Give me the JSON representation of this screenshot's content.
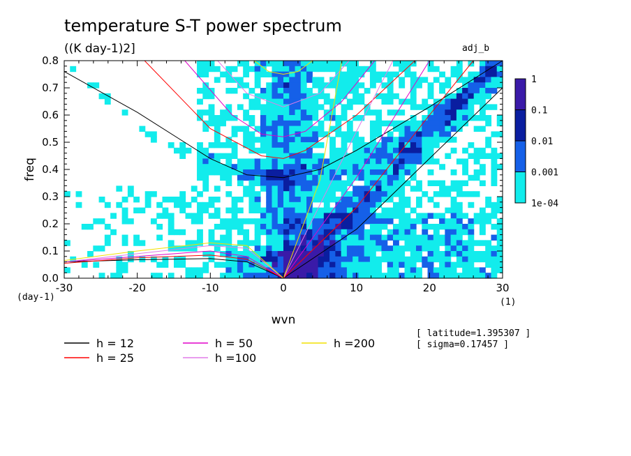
{
  "header": {
    "title": "temperature S-T power spectrum",
    "units": "((K day-1)2]",
    "run_name": "adj_b"
  },
  "info": {
    "latitude": "[ latitude=1.395307 ]",
    "sigma": "[ sigma=0.17457 ]"
  },
  "axes": {
    "xlabel": "wvn",
    "ylabel": "freq",
    "x_unit": "(1)",
    "y_unit": "(day-1)",
    "xlim": [
      -30,
      30
    ],
    "ylim": [
      0,
      0.8
    ],
    "x_ticks": [
      "-30",
      "-20",
      "-10",
      "0",
      "10",
      "20",
      "30"
    ],
    "y_ticks": [
      "0.0",
      "0.1",
      "0.2",
      "0.3",
      "0.4",
      "0.5",
      "0.6",
      "0.7",
      "0.8"
    ]
  },
  "colorbar": {
    "labels": [
      "1",
      "0.1",
      "0.01",
      "0.001",
      "1e-04"
    ],
    "colors": [
      "#3a1aa8",
      "#0a1ea0",
      "#1560e8",
      "#12ecec"
    ]
  },
  "legend": {
    "items": [
      {
        "label": "h = 12",
        "color": "#000000"
      },
      {
        "label": "h = 25",
        "color": "#ff0000"
      },
      {
        "label": "h = 50",
        "color": "#e000c8"
      },
      {
        "label": "h =100",
        "color": "#e07ce8"
      },
      {
        "label": "h =200",
        "color": "#f2e000"
      }
    ]
  },
  "chart_data": {
    "type": "heatmap",
    "title": "temperature S-T power spectrum",
    "xlabel": "wvn",
    "ylabel": "freq",
    "xlim": [
      -30,
      30
    ],
    "ylim": [
      0,
      0.8
    ],
    "grid": false,
    "levels": [
      0.0001,
      0.001,
      0.01,
      0.1,
      1
    ],
    "level_colors": [
      "#12ecec",
      "#1560e8",
      "#0a1ea0",
      "#3a1aa8"
    ],
    "curves": [
      {
        "name": "h = 12",
        "color": "#000000",
        "branch": "inertia-gravity",
        "points": [
          [
            -30,
            0.76
          ],
          [
            -20,
            0.61
          ],
          [
            -10,
            0.44
          ],
          [
            -5,
            0.38
          ],
          [
            0,
            0.37
          ],
          [
            5,
            0.4
          ],
          [
            10,
            0.47
          ],
          [
            20,
            0.63
          ],
          [
            30,
            0.8
          ]
        ]
      },
      {
        "name": "h = 12",
        "color": "#000000",
        "branch": "kelvin",
        "points": [
          [
            0,
            0
          ],
          [
            10,
            0.18
          ],
          [
            20,
            0.44
          ],
          [
            30,
            0.7
          ]
        ]
      },
      {
        "name": "h = 12",
        "color": "#000000",
        "branch": "rossby",
        "points": [
          [
            -30,
            0.06
          ],
          [
            -20,
            0.068
          ],
          [
            -10,
            0.072
          ],
          [
            -5,
            0.06
          ],
          [
            0,
            0
          ]
        ]
      },
      {
        "name": "h = 25",
        "color": "#ff0000",
        "branch": "inertia-gravity",
        "points": [
          [
            -19,
            0.8
          ],
          [
            -10,
            0.55
          ],
          [
            -3,
            0.45
          ],
          [
            0,
            0.44
          ],
          [
            3,
            0.47
          ],
          [
            10,
            0.6
          ],
          [
            18,
            0.8
          ]
        ]
      },
      {
        "name": "h = 25",
        "color": "#ff0000",
        "branch": "kelvin",
        "points": [
          [
            0,
            0
          ],
          [
            10,
            0.26
          ],
          [
            20,
            0.6
          ],
          [
            26,
            0.8
          ]
        ]
      },
      {
        "name": "h = 25",
        "color": "#ff0000",
        "branch": "rossby",
        "points": [
          [
            -30,
            0.055
          ],
          [
            -20,
            0.075
          ],
          [
            -10,
            0.085
          ],
          [
            -5,
            0.07
          ],
          [
            0,
            0
          ]
        ]
      },
      {
        "name": "h = 50",
        "color": "#e000c8",
        "branch": "inertia-gravity",
        "points": [
          [
            -13.5,
            0.8
          ],
          [
            -7,
            0.6
          ],
          [
            -3,
            0.53
          ],
          [
            0,
            0.52
          ],
          [
            3,
            0.54
          ],
          [
            8,
            0.65
          ],
          [
            12.5,
            0.8
          ]
        ]
      },
      {
        "name": "h = 50",
        "color": "#e000c8",
        "branch": "kelvin",
        "points": [
          [
            0,
            0
          ],
          [
            10,
            0.37
          ],
          [
            20,
            0.8
          ]
        ]
      },
      {
        "name": "h = 50",
        "color": "#e000c8",
        "branch": "rossby",
        "points": [
          [
            -30,
            0.06
          ],
          [
            -20,
            0.08
          ],
          [
            -10,
            0.1
          ],
          [
            -5,
            0.08
          ],
          [
            0,
            0
          ]
        ]
      },
      {
        "name": "h =100",
        "color": "#e07ce8",
        "branch": "inertia-gravity",
        "points": [
          [
            -9,
            0.8
          ],
          [
            -5,
            0.68
          ],
          [
            0,
            0.63
          ],
          [
            5,
            0.68
          ],
          [
            9,
            0.8
          ]
        ]
      },
      {
        "name": "h =100",
        "color": "#e07ce8",
        "branch": "kelvin",
        "points": [
          [
            0,
            0
          ],
          [
            5,
            0.27
          ],
          [
            10,
            0.54
          ],
          [
            15,
            0.8
          ]
        ]
      },
      {
        "name": "h =100",
        "color": "#e07ce8",
        "branch": "rossby",
        "points": [
          [
            -30,
            0.06
          ],
          [
            -20,
            0.09
          ],
          [
            -10,
            0.12
          ],
          [
            -5,
            0.11
          ],
          [
            0,
            0
          ]
        ]
      },
      {
        "name": "h =200",
        "color": "#f2e000",
        "branch": "inertia-gravity",
        "points": [
          [
            -4,
            0.8
          ],
          [
            -2,
            0.76
          ],
          [
            0,
            0.75
          ],
          [
            2,
            0.76
          ],
          [
            4,
            0.8
          ]
        ]
      },
      {
        "name": "h =200",
        "color": "#f2e000",
        "branch": "kelvin",
        "points": [
          [
            0,
            0
          ],
          [
            5,
            0.36
          ],
          [
            8,
            0.8
          ]
        ]
      },
      {
        "name": "h =200",
        "color": "#f2e000",
        "branch": "rossby",
        "points": [
          [
            -30,
            0.065
          ],
          [
            -20,
            0.1
          ],
          [
            -10,
            0.13
          ],
          [
            -5,
            0.12
          ],
          [
            0,
            0
          ]
        ]
      }
    ]
  }
}
